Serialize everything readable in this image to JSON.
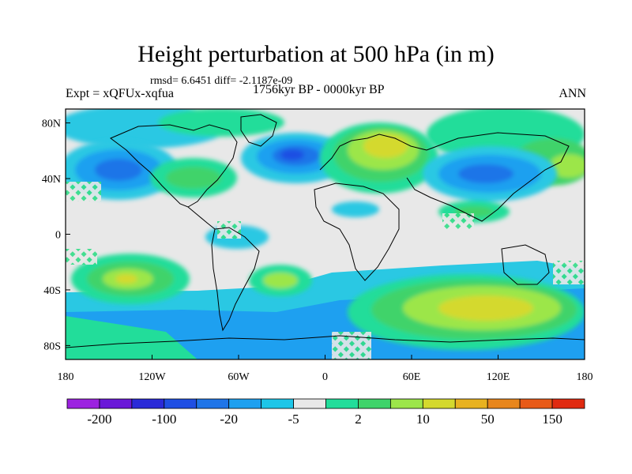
{
  "title": "Height perturbation at 500 hPa (in m)",
  "stats": "rmsd= 6.6451 diff= -2.1187e-09",
  "experiment": "Expt = xQFUx-xqfua",
  "period": "1756kyr BP - 0000kyr BP",
  "season": "ANN",
  "colors": {
    "missing_hatch": "#33dd88",
    "neutral": "#e8e8e8"
  },
  "axes": {
    "x_ticks": [
      "180",
      "120W",
      "60W",
      "0",
      "60E",
      "120E",
      "180"
    ],
    "y_ticks": [
      "80N",
      "40N",
      "0",
      "40S",
      "80S"
    ]
  },
  "colorbar": {
    "colors": [
      "#9c22e0",
      "#6a18d8",
      "#2a2ad8",
      "#1f4fe3",
      "#1f75e8",
      "#1ea0f0",
      "#1ec6e8",
      "#e8e8e8",
      "#22dd9a",
      "#3fd36a",
      "#9ce64a",
      "#d4d92e",
      "#e8b220",
      "#e8861c",
      "#e85a18",
      "#e02a10"
    ],
    "labels": [
      "-200",
      "-100",
      "-20",
      "-5",
      "2",
      "10",
      "50",
      "150"
    ]
  }
}
